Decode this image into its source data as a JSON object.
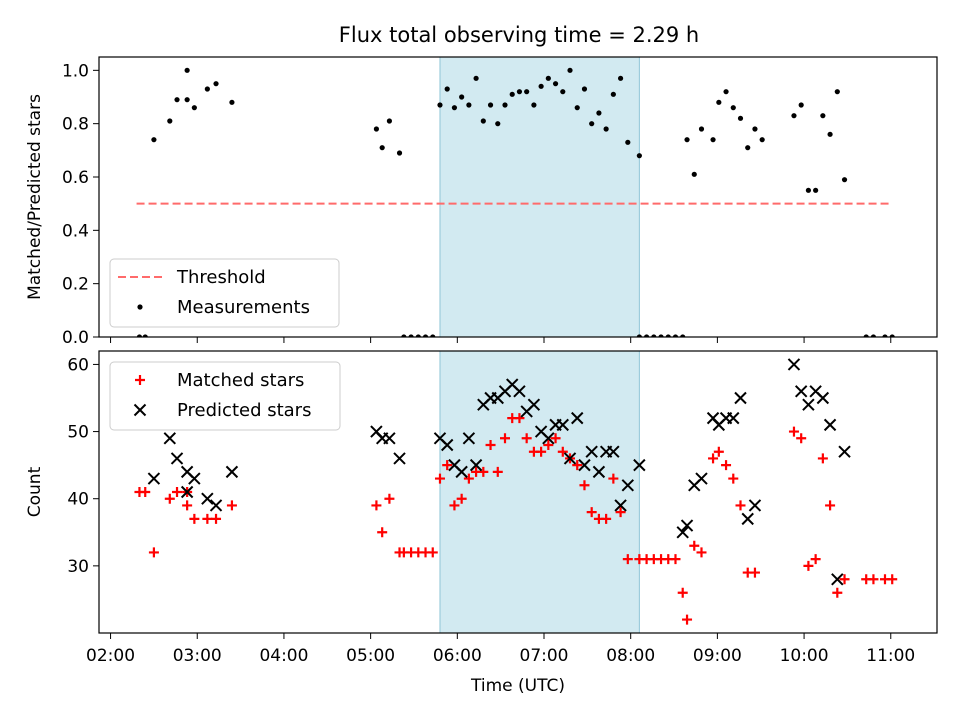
{
  "title": "Flux total observing time = 2.29 h",
  "colors": {
    "threshold": "#ff6b6b",
    "measurement": "#000000",
    "matched": "#ff0000",
    "predicted": "#000000",
    "span": "#add8e6"
  },
  "chart_data": [
    {
      "type": "scatter",
      "ylabel": "Matched/Predicted stars",
      "ylim": [
        0,
        1.05
      ],
      "yticks": [
        "0.0",
        "0.2",
        "0.4",
        "0.6",
        "0.8",
        "1.0"
      ],
      "xlim": [
        "01:52",
        "11:32"
      ],
      "span": [
        "05:48",
        "08:06"
      ],
      "legend_position": "lower-left",
      "legend": [
        "Threshold",
        "Measurements"
      ],
      "threshold": {
        "name": "Threshold",
        "value": 0.5,
        "x": [
          "02:18",
          "11:00"
        ]
      },
      "series": [
        {
          "name": "Measurements",
          "points": [
            [
              "02:20",
              0.0
            ],
            [
              "02:24",
              0.0
            ],
            [
              "02:30",
              0.74
            ],
            [
              "02:41",
              0.81
            ],
            [
              "02:46",
              0.89
            ],
            [
              "02:53",
              1.0
            ],
            [
              "02:53",
              0.89
            ],
            [
              "02:58",
              0.86
            ],
            [
              "03:07",
              0.93
            ],
            [
              "03:13",
              0.95
            ],
            [
              "03:24",
              0.88
            ],
            [
              "05:04",
              0.78
            ],
            [
              "05:08",
              0.71
            ],
            [
              "05:13",
              0.81
            ],
            [
              "05:20",
              0.69
            ],
            [
              "05:23",
              0.0
            ],
            [
              "05:28",
              0.0
            ],
            [
              "05:33",
              0.0
            ],
            [
              "05:38",
              0.0
            ],
            [
              "05:43",
              0.0
            ],
            [
              "05:48",
              0.87
            ],
            [
              "05:53",
              0.93
            ],
            [
              "05:58",
              0.86
            ],
            [
              "06:03",
              0.9
            ],
            [
              "06:08",
              0.87
            ],
            [
              "06:13",
              0.97
            ],
            [
              "06:18",
              0.81
            ],
            [
              "06:23",
              0.87
            ],
            [
              "06:28",
              0.8
            ],
            [
              "06:33",
              0.87
            ],
            [
              "06:38",
              0.91
            ],
            [
              "06:43",
              0.92
            ],
            [
              "06:48",
              0.92
            ],
            [
              "06:53",
              0.87
            ],
            [
              "06:58",
              0.94
            ],
            [
              "07:03",
              0.97
            ],
            [
              "07:08",
              0.95
            ],
            [
              "07:13",
              0.92
            ],
            [
              "07:18",
              1.0
            ],
            [
              "07:23",
              0.86
            ],
            [
              "07:28",
              0.93
            ],
            [
              "07:33",
              0.8
            ],
            [
              "07:38",
              0.84
            ],
            [
              "07:43",
              0.78
            ],
            [
              "07:48",
              0.91
            ],
            [
              "07:53",
              0.97
            ],
            [
              "07:58",
              0.73
            ],
            [
              "08:06",
              0.68
            ],
            [
              "08:06",
              0.0
            ],
            [
              "08:11",
              0.0
            ],
            [
              "08:16",
              0.0
            ],
            [
              "08:21",
              0.0
            ],
            [
              "08:26",
              0.0
            ],
            [
              "08:31",
              0.0
            ],
            [
              "08:36",
              0.0
            ],
            [
              "08:39",
              0.74
            ],
            [
              "08:44",
              0.61
            ],
            [
              "08:49",
              0.78
            ],
            [
              "08:57",
              0.74
            ],
            [
              "09:01",
              0.88
            ],
            [
              "09:06",
              0.92
            ],
            [
              "09:11",
              0.86
            ],
            [
              "09:16",
              0.82
            ],
            [
              "09:21",
              0.71
            ],
            [
              "09:26",
              0.78
            ],
            [
              "09:31",
              0.74
            ],
            [
              "09:53",
              0.83
            ],
            [
              "09:58",
              0.87
            ],
            [
              "10:03",
              0.55
            ],
            [
              "10:08",
              0.55
            ],
            [
              "10:13",
              0.83
            ],
            [
              "10:18",
              0.76
            ],
            [
              "10:23",
              0.92
            ],
            [
              "10:28",
              0.59
            ],
            [
              "10:43",
              0.0
            ],
            [
              "10:48",
              0.0
            ],
            [
              "10:56",
              0.0
            ],
            [
              "11:01",
              0.0
            ]
          ]
        }
      ]
    },
    {
      "type": "scatter",
      "xlabel": "Time (UTC)",
      "ylabel": "Count",
      "ylim": [
        20,
        62
      ],
      "yticks": [
        "30",
        "40",
        "50",
        "60"
      ],
      "xlim": [
        "01:52",
        "11:32"
      ],
      "xticks": [
        "02:00",
        "03:00",
        "04:00",
        "05:00",
        "06:00",
        "07:00",
        "08:00",
        "09:00",
        "10:00",
        "11:00"
      ],
      "span": [
        "05:48",
        "08:06"
      ],
      "legend_position": "upper-left",
      "legend": [
        "Matched stars",
        "Predicted stars"
      ],
      "series": [
        {
          "name": "Matched stars",
          "points": [
            [
              "02:20",
              41
            ],
            [
              "02:24",
              41
            ],
            [
              "02:30",
              32
            ],
            [
              "02:41",
              40
            ],
            [
              "02:46",
              41
            ],
            [
              "02:53",
              39
            ],
            [
              "02:53",
              41
            ],
            [
              "02:58",
              37
            ],
            [
              "03:07",
              37
            ],
            [
              "03:13",
              37
            ],
            [
              "03:24",
              39
            ],
            [
              "05:04",
              39
            ],
            [
              "05:08",
              35
            ],
            [
              "05:13",
              40
            ],
            [
              "05:20",
              32
            ],
            [
              "05:23",
              32
            ],
            [
              "05:28",
              32
            ],
            [
              "05:33",
              32
            ],
            [
              "05:38",
              32
            ],
            [
              "05:43",
              32
            ],
            [
              "05:48",
              43
            ],
            [
              "05:53",
              45
            ],
            [
              "05:58",
              39
            ],
            [
              "06:03",
              40
            ],
            [
              "06:08",
              43
            ],
            [
              "06:13",
              44
            ],
            [
              "06:18",
              44
            ],
            [
              "06:23",
              48
            ],
            [
              "06:28",
              44
            ],
            [
              "06:33",
              49
            ],
            [
              "06:38",
              52
            ],
            [
              "06:43",
              52
            ],
            [
              "06:48",
              49
            ],
            [
              "06:53",
              47
            ],
            [
              "06:58",
              47
            ],
            [
              "07:03",
              48
            ],
            [
              "07:08",
              49
            ],
            [
              "07:13",
              47
            ],
            [
              "07:18",
              46
            ],
            [
              "07:23",
              45
            ],
            [
              "07:28",
              42
            ],
            [
              "07:33",
              38
            ],
            [
              "07:38",
              37
            ],
            [
              "07:43",
              37
            ],
            [
              "07:48",
              43
            ],
            [
              "07:53",
              38
            ],
            [
              "07:58",
              31
            ],
            [
              "08:06",
              31
            ],
            [
              "08:11",
              31
            ],
            [
              "08:16",
              31
            ],
            [
              "08:21",
              31
            ],
            [
              "08:26",
              31
            ],
            [
              "08:31",
              31
            ],
            [
              "08:36",
              26
            ],
            [
              "08:39",
              22
            ],
            [
              "08:44",
              33
            ],
            [
              "08:49",
              32
            ],
            [
              "08:57",
              46
            ],
            [
              "09:01",
              47
            ],
            [
              "09:06",
              45
            ],
            [
              "09:11",
              43
            ],
            [
              "09:16",
              39
            ],
            [
              "09:21",
              29
            ],
            [
              "09:26",
              29
            ],
            [
              "09:53",
              50
            ],
            [
              "09:58",
              49
            ],
            [
              "10:03",
              30
            ],
            [
              "10:08",
              31
            ],
            [
              "10:13",
              46
            ],
            [
              "10:18",
              39
            ],
            [
              "10:23",
              26
            ],
            [
              "10:28",
              28
            ],
            [
              "10:43",
              28
            ],
            [
              "10:48",
              28
            ],
            [
              "10:56",
              28
            ],
            [
              "11:01",
              28
            ]
          ]
        },
        {
          "name": "Predicted stars",
          "points": [
            [
              "02:30",
              43
            ],
            [
              "02:41",
              49
            ],
            [
              "02:46",
              46
            ],
            [
              "02:53",
              44
            ],
            [
              "02:53",
              41
            ],
            [
              "02:58",
              43
            ],
            [
              "03:07",
              40
            ],
            [
              "03:13",
              39
            ],
            [
              "03:24",
              44
            ],
            [
              "05:04",
              50
            ],
            [
              "05:08",
              49
            ],
            [
              "05:13",
              49
            ],
            [
              "05:20",
              46
            ],
            [
              "05:48",
              49
            ],
            [
              "05:53",
              48
            ],
            [
              "05:58",
              45
            ],
            [
              "06:03",
              44
            ],
            [
              "06:08",
              49
            ],
            [
              "06:13",
              45
            ],
            [
              "06:18",
              54
            ],
            [
              "06:23",
              55
            ],
            [
              "06:28",
              55
            ],
            [
              "06:33",
              56
            ],
            [
              "06:38",
              57
            ],
            [
              "06:43",
              56
            ],
            [
              "06:48",
              53
            ],
            [
              "06:53",
              54
            ],
            [
              "06:58",
              50
            ],
            [
              "07:03",
              49
            ],
            [
              "07:08",
              51
            ],
            [
              "07:13",
              51
            ],
            [
              "07:18",
              46
            ],
            [
              "07:23",
              52
            ],
            [
              "07:28",
              45
            ],
            [
              "07:33",
              47
            ],
            [
              "07:38",
              44
            ],
            [
              "07:43",
              47
            ],
            [
              "07:48",
              47
            ],
            [
              "07:53",
              39
            ],
            [
              "07:58",
              42
            ],
            [
              "08:06",
              45
            ],
            [
              "08:36",
              35
            ],
            [
              "08:39",
              36
            ],
            [
              "08:44",
              42
            ],
            [
              "08:49",
              43
            ],
            [
              "08:57",
              52
            ],
            [
              "09:01",
              51
            ],
            [
              "09:06",
              52
            ],
            [
              "09:11",
              52
            ],
            [
              "09:16",
              55
            ],
            [
              "09:21",
              37
            ],
            [
              "09:26",
              39
            ],
            [
              "09:53",
              60
            ],
            [
              "09:58",
              56
            ],
            [
              "10:03",
              54
            ],
            [
              "10:08",
              56
            ],
            [
              "10:13",
              55
            ],
            [
              "10:18",
              51
            ],
            [
              "10:23",
              28
            ],
            [
              "10:28",
              47
            ]
          ]
        }
      ]
    }
  ]
}
